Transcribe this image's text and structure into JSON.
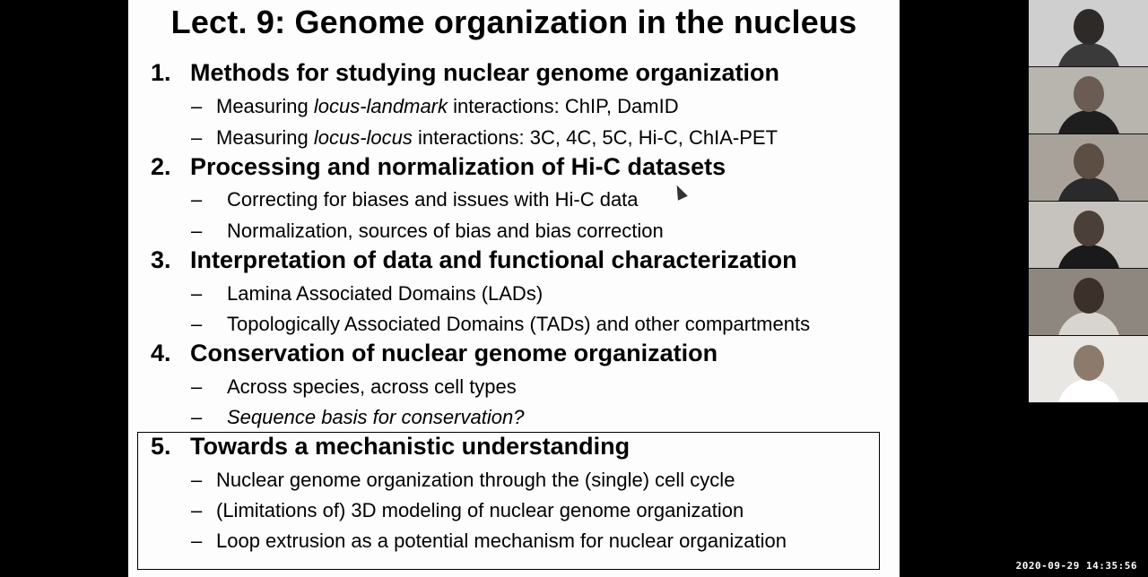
{
  "slide": {
    "title": "Lect. 9: Genome organization in the nucleus",
    "sections": [
      {
        "number": "1.",
        "heading": "Methods for studying nuclear genome organization",
        "items": [
          {
            "dash": "–",
            "pre": "Measuring ",
            "em": "locus-landmark",
            "post": " interactions: ChIP, DamID"
          },
          {
            "dash": "–",
            "pre": "Measuring ",
            "em": "locus-locus",
            "post": " interactions: 3C, 4C, 5C, Hi-C, ChIA-PET"
          }
        ]
      },
      {
        "number": "2.",
        "heading": "Processing and normalization of Hi-C datasets",
        "items": [
          {
            "dash": "–",
            "text": "Correcting for biases and issues with Hi-C data"
          },
          {
            "dash": "–",
            "text": "Normalization, sources of bias and bias correction"
          }
        ]
      },
      {
        "number": "3.",
        "heading": "Interpretation of data and functional characterization",
        "items": [
          {
            "dash": "–",
            "text": "Lamina Associated Domains (LADs)"
          },
          {
            "dash": "–",
            "text": "Topologically Associated Domains (TADs) and other compartments"
          }
        ]
      },
      {
        "number": "4.",
        "heading": "Conservation of nuclear genome organization",
        "items": [
          {
            "dash": "–",
            "text": "Across species, across cell types"
          },
          {
            "dash": "–",
            "text": "Sequence basis for conservation?"
          }
        ]
      },
      {
        "number": "5.",
        "heading": "Towards a mechanistic understanding",
        "items": [
          {
            "dash": "–",
            "text": "Nuclear genome organization through the (single) cell cycle"
          },
          {
            "dash": "–",
            "text": "(Limitations of) 3D modeling of nuclear genome organization"
          },
          {
            "dash": "–",
            "text": "Loop extrusion as a potential mechanism for nuclear organization"
          }
        ]
      }
    ]
  },
  "participants": [
    {
      "bg": "#cfcfcf",
      "skin": "#2e2a27",
      "shirt": "#3a3a3a"
    },
    {
      "bg": "#b8b4ae",
      "skin": "#6a5c52",
      "shirt": "#1e1e1e"
    },
    {
      "bg": "#a9a29a",
      "skin": "#5d4e44",
      "shirt": "#2a2a2a"
    },
    {
      "bg": "#c6c2bd",
      "skin": "#4b4039",
      "shirt": "#1a1a1a"
    },
    {
      "bg": "#8e8780",
      "skin": "#3c302a",
      "shirt": "#d8d4cf"
    },
    {
      "bg": "#e9e7e3",
      "skin": "#8c7a6c",
      "shirt": "#ffffff"
    }
  ],
  "timestamp": "2020-09-29 14:35:56"
}
